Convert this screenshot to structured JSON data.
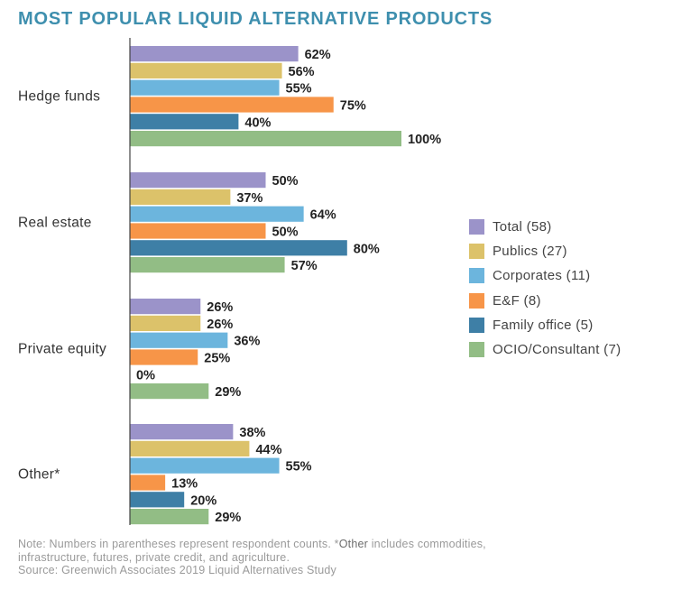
{
  "title": "MOST POPULAR LIQUID ALTERNATIVE PRODUCTS",
  "chart_data": {
    "type": "bar",
    "orientation": "horizontal",
    "title": "MOST POPULAR LIQUID ALTERNATIVE PRODUCTS",
    "categories": [
      "Hedge funds",
      "Real estate",
      "Private equity",
      "Other*"
    ],
    "series": [
      {
        "name": "Total (58)",
        "color": "#9b93c9",
        "values": [
          62,
          50,
          26,
          38
        ]
      },
      {
        "name": "Publics (27)",
        "color": "#dcc26a",
        "values": [
          56,
          37,
          26,
          44
        ]
      },
      {
        "name": "Corporates (11)",
        "color": "#6cb5dd",
        "values": [
          55,
          64,
          36,
          55
        ]
      },
      {
        "name": "E&F (8)",
        "color": "#f79548",
        "values": [
          75,
          50,
          25,
          13
        ]
      },
      {
        "name": "Family office (5)",
        "color": "#3e7fa6",
        "values": [
          40,
          80,
          0,
          20
        ]
      },
      {
        "name": "OCIO/Consultant (7)",
        "color": "#92bd85",
        "values": [
          100,
          57,
          29,
          29
        ]
      }
    ],
    "value_suffix": "%",
    "xlim": [
      0,
      100
    ],
    "grid": false,
    "legend_position": "right"
  },
  "notes": {
    "line1_a": "Note: Numbers in parentheses represent respondent counts. *",
    "line1_b": "Other",
    "line1_c": " includes commodities,",
    "line2": "infrastructure, futures, private credit, and agriculture.",
    "line3": "Source: Greenwich Associates 2019 Liquid Alternatives Study"
  }
}
